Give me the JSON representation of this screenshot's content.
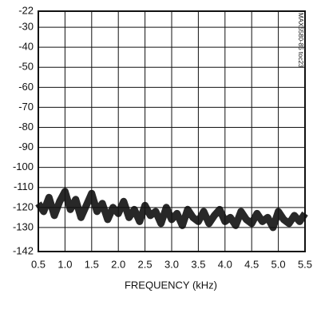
{
  "chart_data": {
    "type": "line",
    "xlabel": "FREQUENCY (kHz)",
    "annotation": "MAX5580-85 toc23",
    "x": [
      0.5,
      0.6,
      0.7,
      0.8,
      0.9,
      1.0,
      1.1,
      1.2,
      1.3,
      1.4,
      1.5,
      1.6,
      1.7,
      1.8,
      1.9,
      2.0,
      2.1,
      2.2,
      2.3,
      2.4,
      2.5,
      2.6,
      2.7,
      2.8,
      2.9,
      3.0,
      3.1,
      3.2,
      3.3,
      3.4,
      3.5,
      3.6,
      3.7,
      3.8,
      3.9,
      4.0,
      4.1,
      4.2,
      4.3,
      4.4,
      4.5,
      4.6,
      4.7,
      4.8,
      4.9,
      5.0,
      5.1,
      5.2,
      5.3,
      5.4,
      5.5
    ],
    "values": [
      -118,
      -122,
      -115,
      -124,
      -117,
      -112,
      -121,
      -116,
      -125,
      -119,
      -113,
      -122,
      -118,
      -126,
      -120,
      -123,
      -117,
      -125,
      -121,
      -127,
      -119,
      -124,
      -122,
      -128,
      -120,
      -126,
      -123,
      -129,
      -121,
      -125,
      -127,
      -122,
      -128,
      -124,
      -121,
      -127,
      -125,
      -129,
      -122,
      -126,
      -128,
      -123,
      -127,
      -125,
      -130,
      -122,
      -126,
      -128,
      -124,
      -127,
      -123
    ],
    "color": "#111111",
    "xlim": [
      0.5,
      5.5
    ],
    "xticks": [
      0.5,
      {
        "value": 1,
        "label": "1.0"
      },
      1.5,
      {
        "value": 2,
        "label": "2.0"
      },
      2.5,
      {
        "value": 3,
        "label": "3.0"
      },
      3.5,
      {
        "value": 4,
        "label": "4.0"
      },
      4.5,
      {
        "value": 5,
        "label": "5.0"
      },
      5.5
    ],
    "ylim": [
      -142,
      -22
    ],
    "yticks": [
      -22,
      -30,
      -40,
      -50,
      -60,
      -70,
      -80,
      -90,
      -100,
      -110,
      -120,
      -130,
      -142
    ],
    "grid": true
  }
}
